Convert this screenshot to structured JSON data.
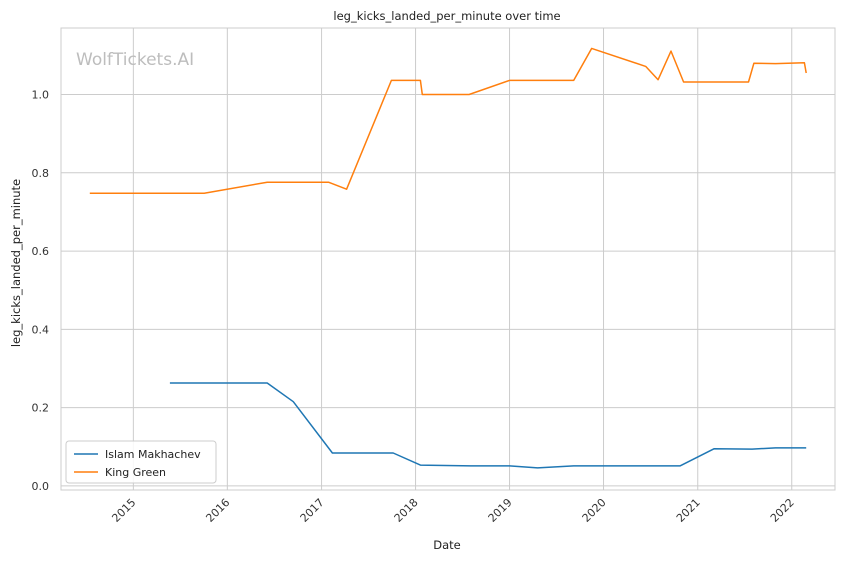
{
  "watermark": "WolfTickets.AI",
  "chart_data": {
    "type": "line",
    "title": "leg_kicks_landed_per_minute over time",
    "xlabel": "Date",
    "ylabel": "leg_kicks_landed_per_minute",
    "xlim": [
      "2014-03-26",
      "2022-06-18"
    ],
    "ylim": [
      -0.0105,
      1.17
    ],
    "xticks": [
      "2015",
      "2016",
      "2017",
      "2018",
      "2019",
      "2020",
      "2021",
      "2022"
    ],
    "yticks": [
      "0.0",
      "0.2",
      "0.4",
      "0.6",
      "0.8",
      "1.0"
    ],
    "grid": true,
    "legend_position": "lower-left",
    "series": [
      {
        "name": "Islam Makhachev",
        "color": "#1f77b4",
        "points": [
          [
            "2015-05-23",
            0.263
          ],
          [
            "2016-06-04",
            0.263
          ],
          [
            "2016-09-13",
            0.215
          ],
          [
            "2017-02-12",
            0.084
          ],
          [
            "2017-10-06",
            0.084
          ],
          [
            "2018-01-20",
            0.053
          ],
          [
            "2018-08-04",
            0.051
          ],
          [
            "2019-01-01",
            0.051
          ],
          [
            "2019-04-20",
            0.046
          ],
          [
            "2019-09-07",
            0.051
          ],
          [
            "2020-10-24",
            0.051
          ],
          [
            "2021-03-06",
            0.095
          ],
          [
            "2021-07-31",
            0.094
          ],
          [
            "2021-10-30",
            0.097
          ],
          [
            "2022-02-26",
            0.097
          ]
        ]
      },
      {
        "name": "King Green",
        "color": "#ff7f0e",
        "points": [
          [
            "2014-07-16",
            0.748
          ],
          [
            "2015-10-03",
            0.748
          ],
          [
            "2016-06-04",
            0.776
          ],
          [
            "2017-01-28",
            0.776
          ],
          [
            "2017-04-08",
            0.758
          ],
          [
            "2017-09-29",
            1.036
          ],
          [
            "2018-01-20",
            1.036
          ],
          [
            "2018-01-27",
            1.0
          ],
          [
            "2018-07-28",
            1.0
          ],
          [
            "2019-01-01",
            1.036
          ],
          [
            "2019-09-07",
            1.036
          ],
          [
            "2019-11-16",
            1.118
          ],
          [
            "2020-06-13",
            1.072
          ],
          [
            "2020-07-31",
            1.038
          ],
          [
            "2020-09-19",
            1.111
          ],
          [
            "2020-11-07",
            1.032
          ],
          [
            "2021-07-17",
            1.032
          ],
          [
            "2021-08-07",
            1.08
          ],
          [
            "2021-10-30",
            1.079
          ],
          [
            "2022-02-19",
            1.081
          ],
          [
            "2022-02-26",
            1.055
          ]
        ]
      }
    ]
  }
}
